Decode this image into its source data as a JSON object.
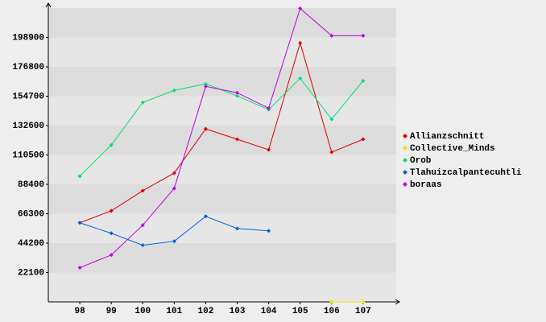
{
  "chart_data": {
    "type": "line",
    "categories": [
      "98",
      "99",
      "100",
      "101",
      "102",
      "103",
      "104",
      "105",
      "106",
      "107"
    ],
    "ylim": [
      0,
      221000
    ],
    "yticks": [
      22100,
      44200,
      66300,
      88400,
      110500,
      132600,
      154700,
      176800,
      198900
    ],
    "grid": true,
    "series": [
      {
        "name": "Allianzschnitt",
        "color": "#e00000",
        "values": [
          59500,
          68500,
          83600,
          96900,
          130100,
          122300,
          114400,
          194700,
          112600,
          122300
        ]
      },
      {
        "name": "Collective_Minds",
        "color": "#e6e600",
        "values": [
          null,
          null,
          null,
          null,
          null,
          null,
          null,
          null,
          0,
          0
        ]
      },
      {
        "name": "Orob",
        "color": "#00e070",
        "values": [
          94500,
          118000,
          150000,
          159100,
          164000,
          154900,
          144600,
          168200,
          137400,
          166300
        ]
      },
      {
        "name": "Tlahuizcalpantecuhtli",
        "color": "#0060e0",
        "values": [
          59500,
          51600,
          42600,
          45600,
          64300,
          55200,
          53400,
          null,
          null,
          null
        ]
      },
      {
        "name": "boraas",
        "color": "#c000e0",
        "values": [
          25700,
          35300,
          57700,
          85400,
          162100,
          157300,
          145700,
          220700,
          200200,
          200200
        ]
      }
    ]
  }
}
